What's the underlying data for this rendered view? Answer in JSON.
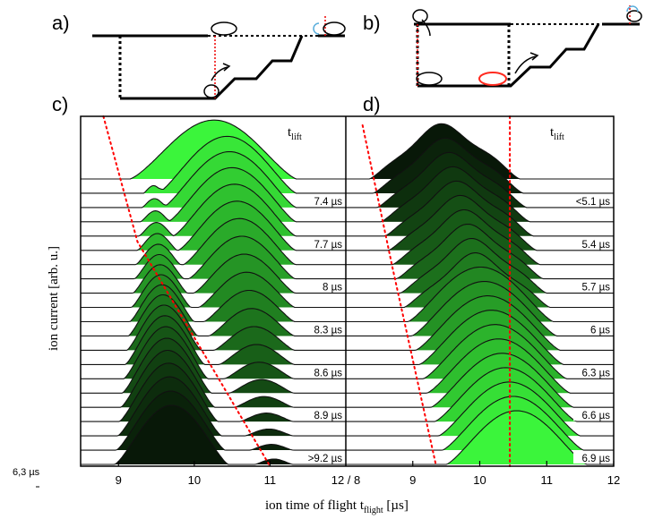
{
  "panel_letters": {
    "a": "a)",
    "b": "b)",
    "c": "c)",
    "d": "d)"
  },
  "chart_data": [
    {
      "panel": "c)",
      "type": "area",
      "stacked_offsets": true,
      "xlim": [
        8.5,
        12
      ],
      "x_ticks": [
        9,
        10,
        11
      ],
      "x_tick_labels": [
        "9",
        "10",
        "11"
      ],
      "legend_title": "t",
      "legend_title_sub": "lift",
      "trace_labels": [
        {
          "trace": 2,
          "text": "7.4 µs"
        },
        {
          "trace": 5,
          "text": "7.7 µs"
        },
        {
          "trace": 8,
          "text": "8 µs"
        },
        {
          "trace": 11,
          "text": "8.3 µs"
        },
        {
          "trace": 14,
          "text": "8.6 µs"
        },
        {
          "trace": 17,
          "text": "8.9 µs"
        },
        {
          "trace": 20,
          "text": ">9.2 µs"
        }
      ],
      "traces": 21,
      "colormap": "black (long t_lift) to bright green (short t_lift)",
      "peak_early": {
        "start": 9.15,
        "end": 10.45,
        "note": "early peak grows as t_lift increases"
      },
      "peak_late": {
        "start": 10.45,
        "end": 11.05,
        "note": "late peak drifts from ~10.5 to ~11.1 µs"
      },
      "dotted_guide_color": "#ff0000"
    },
    {
      "panel": "d)",
      "type": "area",
      "stacked_offsets": true,
      "xlim": [
        8,
        12
      ],
      "x_ticks": [
        9,
        10,
        11,
        12
      ],
      "x_tick_labels": [
        "9",
        "10",
        "11",
        "12"
      ],
      "legend_title": "t",
      "legend_title_sub": "lift",
      "trace_labels": [
        {
          "trace": 2,
          "text": "<5.1 µs"
        },
        {
          "trace": 5,
          "text": "5.4 µs"
        },
        {
          "trace": 8,
          "text": "5.7 µs"
        },
        {
          "trace": 11,
          "text": "6 µs"
        },
        {
          "trace": 14,
          "text": "6.3 µs"
        },
        {
          "trace": 17,
          "text": "6.6 µs"
        },
        {
          "trace": 20,
          "text": "6.9 µs"
        }
      ],
      "traces": 21,
      "colormap": "black (short t_lift) to bright green (long t_lift)",
      "dotted_guide_color": "#ff0000"
    }
  ],
  "axes": {
    "ylabel": "ion current [arb. u.]",
    "xlabel_main": "ion time of flight t",
    "xlabel_sub": "flight",
    "xlabel_unit": " [µs]",
    "shared_tick": "12 / 8"
  },
  "stray_label": "6,3 µs",
  "colors": {
    "guide_dotted": "#ff0000",
    "guide_red_ring": "#ff3b2f",
    "guide_blue": "#7aa8d6",
    "dark_green": "#0a1a0a",
    "bright_green": "#3bf53b"
  }
}
